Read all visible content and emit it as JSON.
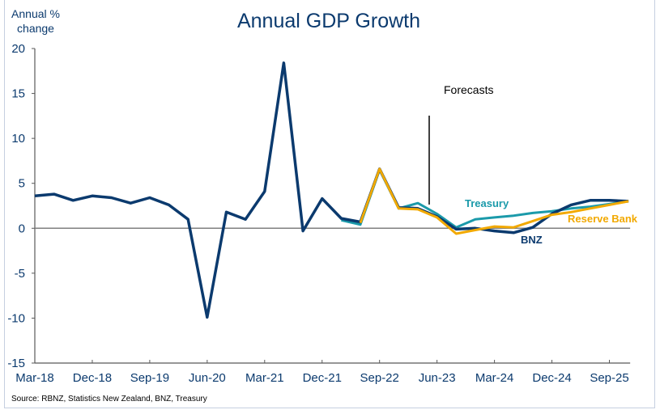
{
  "chart_data": {
    "type": "line",
    "title": "Annual GDP Growth",
    "ylabel": "Annual % change",
    "xlabel": "",
    "ylim": [
      -15,
      20
    ],
    "yticks": [
      20,
      15,
      10,
      5,
      0,
      -5,
      -10,
      -15
    ],
    "xtick_labels": [
      "Mar-18",
      "Dec-18",
      "Sep-19",
      "Jun-20",
      "Mar-21",
      "Dec-21",
      "Sep-22",
      "Jun-23",
      "Mar-24",
      "Dec-24",
      "Sep-25"
    ],
    "x": [
      "Mar-18",
      "Jun-18",
      "Sep-18",
      "Dec-18",
      "Mar-19",
      "Jun-19",
      "Sep-19",
      "Dec-19",
      "Mar-20",
      "Jun-20",
      "Sep-20",
      "Dec-20",
      "Mar-21",
      "Jun-21",
      "Sep-21",
      "Dec-21",
      "Mar-22",
      "Jun-22",
      "Sep-22",
      "Dec-22",
      "Mar-23",
      "Jun-23",
      "Sep-23",
      "Dec-23",
      "Mar-24",
      "Jun-24",
      "Sep-24",
      "Dec-24",
      "Mar-25",
      "Jun-25",
      "Sep-25",
      "Dec-25"
    ],
    "series": [
      {
        "name": "Treasury",
        "color": "#1b9aaa",
        "values": [
          null,
          null,
          null,
          null,
          null,
          null,
          null,
          null,
          null,
          null,
          null,
          null,
          null,
          null,
          null,
          null,
          0.9,
          0.4,
          6.5,
          2.2,
          2.8,
          1.6,
          0.1,
          1.0,
          1.2,
          1.4,
          1.7,
          1.9,
          2.2,
          2.4,
          2.7,
          3.0
        ]
      },
      {
        "name": "BNZ",
        "color": "#0b3a6e",
        "values": [
          3.6,
          3.8,
          3.1,
          3.6,
          3.4,
          2.8,
          3.4,
          2.6,
          1.0,
          -9.9,
          1.8,
          1.0,
          4.1,
          18.4,
          -0.3,
          3.3,
          1.1,
          0.7,
          6.6,
          2.3,
          2.2,
          1.3,
          -0.1,
          0.0,
          -0.3,
          -0.5,
          0.1,
          1.6,
          2.6,
          3.1,
          3.1,
          3.0
        ]
      },
      {
        "name": "Reserve Bank",
        "color": "#f2a900",
        "values": [
          null,
          null,
          null,
          null,
          null,
          null,
          null,
          null,
          null,
          null,
          null,
          null,
          null,
          null,
          null,
          null,
          null,
          0.6,
          6.6,
          2.2,
          2.1,
          1.2,
          -0.6,
          -0.2,
          0.2,
          0.1,
          0.8,
          1.5,
          1.8,
          2.2,
          2.6,
          3.0
        ]
      }
    ],
    "series_labels": [
      {
        "name": "Treasury",
        "text": "Treasury"
      },
      {
        "name": "Reserve Bank",
        "text": "Reserve Bank"
      },
      {
        "name": "BNZ",
        "text": "BNZ"
      }
    ],
    "annotation": {
      "text": "Forecasts",
      "marker_x": "Mar-23/Jun-23"
    },
    "zero_line": true,
    "grid": false,
    "legend": "inline-labels"
  },
  "source": "Source: RBNZ, Statistics New Zealand, BNZ, Treasury"
}
